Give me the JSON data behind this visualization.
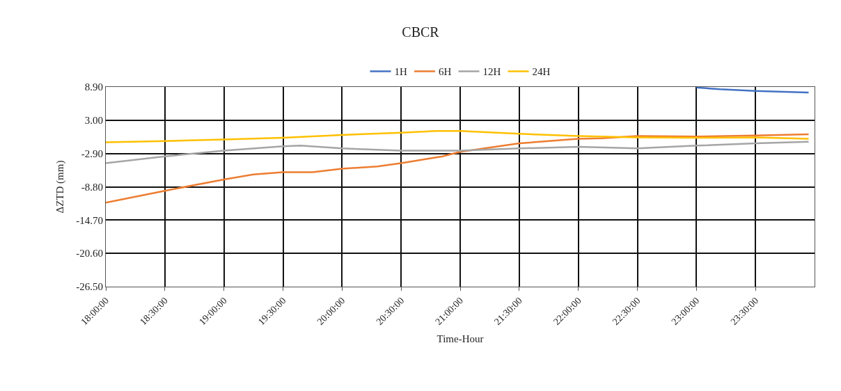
{
  "chart_data": {
    "type": "line",
    "title": "CBCR",
    "xlabel": "Time-Hour",
    "ylabel": "ΔZTD (mm)",
    "legend": "top",
    "grid": true,
    "line_style": "solid",
    "marker": "none",
    "xlim": [
      18,
      24
    ],
    "xticks": [
      {
        "value": 18,
        "label": "18:00:00"
      },
      {
        "value": 18.5,
        "label": "18:30:00"
      },
      {
        "value": 19,
        "label": "19:00:00"
      },
      {
        "value": 19.5,
        "label": "19:30:00"
      },
      {
        "value": 20,
        "label": "20:00:00"
      },
      {
        "value": 20.5,
        "label": "20:30:00"
      },
      {
        "value": 21,
        "label": "21:00:00"
      },
      {
        "value": 21.5,
        "label": "21:30:00"
      },
      {
        "value": 22,
        "label": "22:00:00"
      },
      {
        "value": 22.5,
        "label": "22:30:00"
      },
      {
        "value": 23,
        "label": "23:00:00"
      },
      {
        "value": 23.5,
        "label": "23:30:00"
      }
    ],
    "ylim": [
      -26.5,
      8.9
    ],
    "yticks": [
      {
        "value": 8.9,
        "label": "8.90"
      },
      {
        "value": 3,
        "label": "3.00"
      },
      {
        "value": -2.9,
        "label": "-2.90"
      },
      {
        "value": -8.8,
        "label": "-8.80"
      },
      {
        "value": -14.7,
        "label": "-14.70"
      },
      {
        "value": -20.6,
        "label": "-20.60"
      },
      {
        "value": -26.5,
        "label": "-26.50"
      }
    ],
    "series": [
      {
        "name": "1H",
        "color": "#4472c4",
        "x": [
          23,
          23.2,
          23.5,
          23.95
        ],
        "values": [
          8.8,
          8.5,
          8.2,
          7.9
        ]
      },
      {
        "name": "6H",
        "color": "#ed7d31",
        "x": [
          18,
          18.5,
          19,
          19.25,
          19.5,
          19.75,
          20,
          20.3,
          20.5,
          20.85,
          21,
          21.5,
          22,
          22.2,
          22.5,
          23,
          23.5,
          23.95
        ],
        "values": [
          -11.6,
          -9.5,
          -7.5,
          -6.6,
          -6.2,
          -6.2,
          -5.6,
          -5.2,
          -4.6,
          -3.4,
          -2.6,
          -1.1,
          -0.3,
          -0.2,
          0.2,
          0.1,
          0.3,
          0.5
        ]
      },
      {
        "name": "12H",
        "color": "#a5a5a5",
        "x": [
          18,
          18.5,
          19,
          19.5,
          19.65,
          20,
          20.5,
          21,
          21.5,
          22,
          22.5,
          23,
          23.5,
          23.95
        ],
        "values": [
          -4.6,
          -3.4,
          -2.4,
          -1.6,
          -1.5,
          -2,
          -2.4,
          -2.4,
          -2,
          -1.7,
          -2,
          -1.5,
          -1.1,
          -0.8
        ]
      },
      {
        "name": "24H",
        "color": "#ffc000",
        "x": [
          18,
          18.5,
          19,
          19.5,
          20,
          20.5,
          20.8,
          21,
          21.5,
          22,
          22.5,
          23,
          23.5,
          23.95
        ],
        "values": [
          -0.9,
          -0.7,
          -0.4,
          -0.1,
          0.4,
          0.8,
          1.1,
          1.1,
          0.6,
          0.2,
          -0.05,
          -0.1,
          -0.05,
          -0.3
        ]
      }
    ]
  }
}
